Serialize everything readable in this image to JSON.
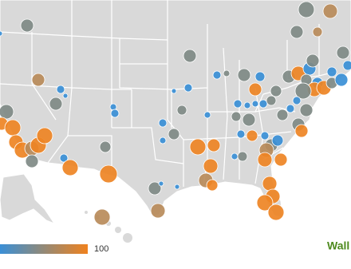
{
  "legend": {
    "max": 100
  },
  "logo": "Wall"
}
